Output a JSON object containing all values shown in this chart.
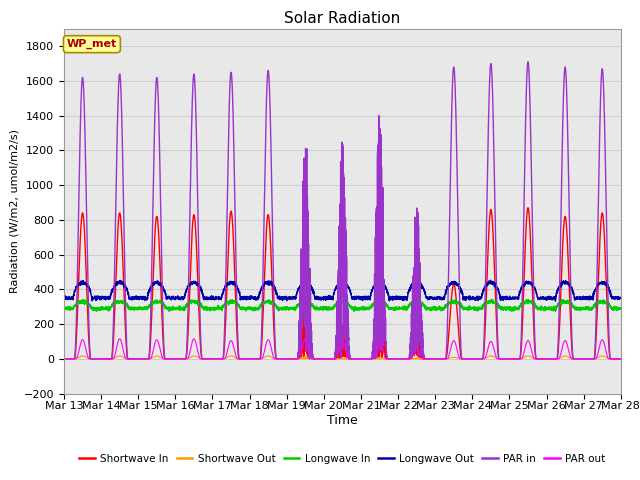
{
  "title": "Solar Radiation",
  "xlabel": "Time",
  "ylabel": "Radiation (W/m2, umol/m2/s)",
  "ylim": [
    -200,
    1900
  ],
  "yticks": [
    -200,
    0,
    200,
    400,
    600,
    800,
    1000,
    1200,
    1400,
    1600,
    1800
  ],
  "n_days": 15,
  "x_tick_labels": [
    "Mar 13",
    "Mar 14",
    "Mar 15",
    "Mar 16",
    "Mar 17",
    "Mar 18",
    "Mar 19",
    "Mar 20",
    "Mar 21",
    "Mar 22",
    "Mar 23",
    "Mar 24",
    "Mar 25",
    "Mar 26",
    "Mar 27",
    "Mar 28"
  ],
  "legend_labels": [
    "Shortwave In",
    "Shortwave Out",
    "Longwave In",
    "Longwave Out",
    "PAR in",
    "PAR out"
  ],
  "legend_colors": [
    "#ff0000",
    "#ff9900",
    "#00cc00",
    "#0000aa",
    "#9933cc",
    "#ff00ff"
  ],
  "line_widths": [
    1.0,
    0.8,
    1.0,
    1.0,
    1.0,
    0.8
  ],
  "annotation_text": "WP_met",
  "annotation_color": "#aa0000",
  "annotation_bg": "#ffff99",
  "annotation_border": "#aa8800",
  "grid_color": "#cccccc",
  "bg_color": "#e8e8e8",
  "fig_bg_color": "#ffffff",
  "sw_in_peaks": [
    840,
    840,
    820,
    830,
    850,
    830,
    680,
    200,
    460,
    230,
    430,
    860,
    870,
    820,
    840
  ],
  "par_in_peaks": [
    1620,
    1640,
    1620,
    1640,
    1650,
    1660,
    1370,
    1300,
    1530,
    930,
    1680,
    1700,
    1710,
    1680,
    1670
  ],
  "par_out_peaks": [
    110,
    115,
    110,
    115,
    105,
    110,
    110,
    100,
    110,
    50,
    105,
    100,
    105,
    105,
    110
  ],
  "lw_in_base": 290,
  "lw_out_base": 350,
  "figsize": [
    6.4,
    4.8
  ],
  "dpi": 100
}
